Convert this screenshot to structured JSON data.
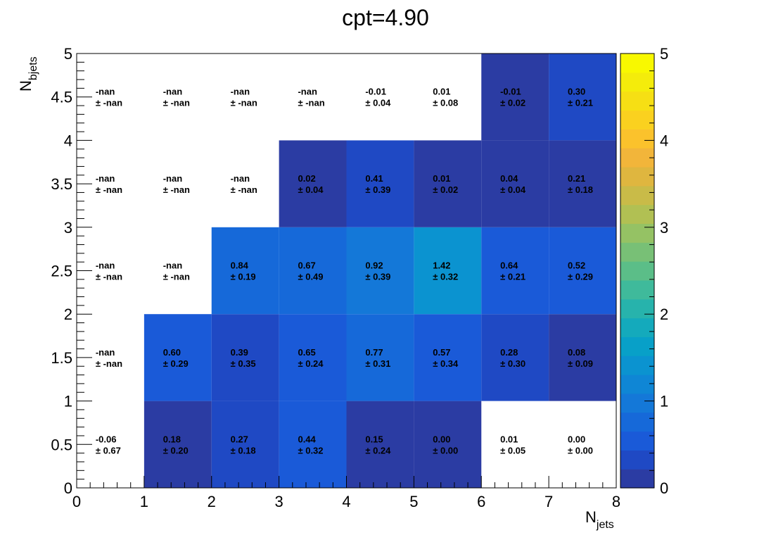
{
  "chart_data": {
    "type": "heatmap",
    "title": "cpt=4.90",
    "xlabel": "N",
    "xlabel_sub": "jets",
    "ylabel": "N",
    "ylabel_sub": "bjets",
    "xlim": [
      0,
      8
    ],
    "ylim": [
      0,
      5
    ],
    "x_ticks": [
      "0",
      "1",
      "2",
      "3",
      "4",
      "5",
      "6",
      "7",
      "8"
    ],
    "y_ticks": [
      "0",
      "0.5",
      "1",
      "1.5",
      "2",
      "2.5",
      "3",
      "3.5",
      "4",
      "4.5",
      "5"
    ],
    "z_range": [
      0,
      5
    ],
    "z_ticks": [
      "0",
      "1",
      "2",
      "3",
      "4",
      "5"
    ],
    "colormap": [
      "#2b3ca3",
      "#1f49c4",
      "#1a5ad8",
      "#1669d9",
      "#1478d8",
      "#0f86d5",
      "#0b93d0",
      "#08a0c8",
      "#14aabc",
      "#27b3ac",
      "#3fba9b",
      "#5bbe88",
      "#78c076",
      "#95c264",
      "#b1c053",
      "#c9bb48",
      "#dfb63f",
      "#f2b53a",
      "#fbc22c",
      "#fad11f",
      "#f6df14",
      "#f4ec0b",
      "#f8f800"
    ],
    "y_bins": [
      0,
      1,
      2,
      3,
      4
    ],
    "cells": [
      [
        {
          "v": "-0.06",
          "e": "± 0.67",
          "z": null
        },
        {
          "v": "0.18",
          "e": "± 0.20",
          "z": 0.18
        },
        {
          "v": "0.27",
          "e": "± 0.18",
          "z": 0.27
        },
        {
          "v": "0.44",
          "e": "± 0.32",
          "z": 0.44
        },
        {
          "v": "0.15",
          "e": "± 0.24",
          "z": 0.15
        },
        {
          "v": "0.00",
          "e": "± 0.00",
          "z": 0.001
        },
        {
          "v": "0.01",
          "e": "± 0.05",
          "z": null
        },
        {
          "v": "0.00",
          "e": "± 0.00",
          "z": null
        }
      ],
      [
        {
          "v": "-nan",
          "e": "± -nan",
          "z": null
        },
        {
          "v": "0.60",
          "e": "± 0.29",
          "z": 0.6
        },
        {
          "v": "0.39",
          "e": "± 0.35",
          "z": 0.39
        },
        {
          "v": "0.65",
          "e": "± 0.24",
          "z": 0.65
        },
        {
          "v": "0.77",
          "e": "± 0.31",
          "z": 0.77
        },
        {
          "v": "0.57",
          "e": "± 0.34",
          "z": 0.57
        },
        {
          "v": "0.28",
          "e": "± 0.30",
          "z": 0.28
        },
        {
          "v": "0.08",
          "e": "± 0.09",
          "z": 0.08
        }
      ],
      [
        {
          "v": "-nan",
          "e": "± -nan",
          "z": null
        },
        {
          "v": "-nan",
          "e": "± -nan",
          "z": null
        },
        {
          "v": "0.84",
          "e": "± 0.19",
          "z": 0.84
        },
        {
          "v": "0.67",
          "e": "± 0.49",
          "z": 0.67
        },
        {
          "v": "0.92",
          "e": "± 0.39",
          "z": 0.92
        },
        {
          "v": "1.42",
          "e": "± 0.32",
          "z": 1.42
        },
        {
          "v": "0.64",
          "e": "± 0.21",
          "z": 0.64
        },
        {
          "v": "0.52",
          "e": "± 0.29",
          "z": 0.52
        }
      ],
      [
        {
          "v": "-nan",
          "e": "± -nan",
          "z": null
        },
        {
          "v": "-nan",
          "e": "± -nan",
          "z": null
        },
        {
          "v": "-nan",
          "e": "± -nan",
          "z": null
        },
        {
          "v": "0.02",
          "e": "± 0.04",
          "z": 0.02
        },
        {
          "v": "0.41",
          "e": "± 0.39",
          "z": 0.41
        },
        {
          "v": "0.01",
          "e": "± 0.02",
          "z": 0.01
        },
        {
          "v": "0.04",
          "e": "± 0.04",
          "z": 0.04
        },
        {
          "v": "0.21",
          "e": "± 0.18",
          "z": 0.21
        }
      ],
      [
        {
          "v": "-nan",
          "e": "± -nan",
          "z": null
        },
        {
          "v": "-nan",
          "e": "± -nan",
          "z": null
        },
        {
          "v": "-nan",
          "e": "± -nan",
          "z": null
        },
        {
          "v": "-nan",
          "e": "± -nan",
          "z": null
        },
        {
          "v": "-0.01",
          "e": "± 0.04",
          "z": null
        },
        {
          "v": "0.01",
          "e": "± 0.08",
          "z": null
        },
        {
          "v": "-0.01",
          "e": "± 0.02",
          "z": 0.001
        },
        {
          "v": "0.30",
          "e": "± 0.21",
          "z": 0.3
        }
      ]
    ]
  }
}
